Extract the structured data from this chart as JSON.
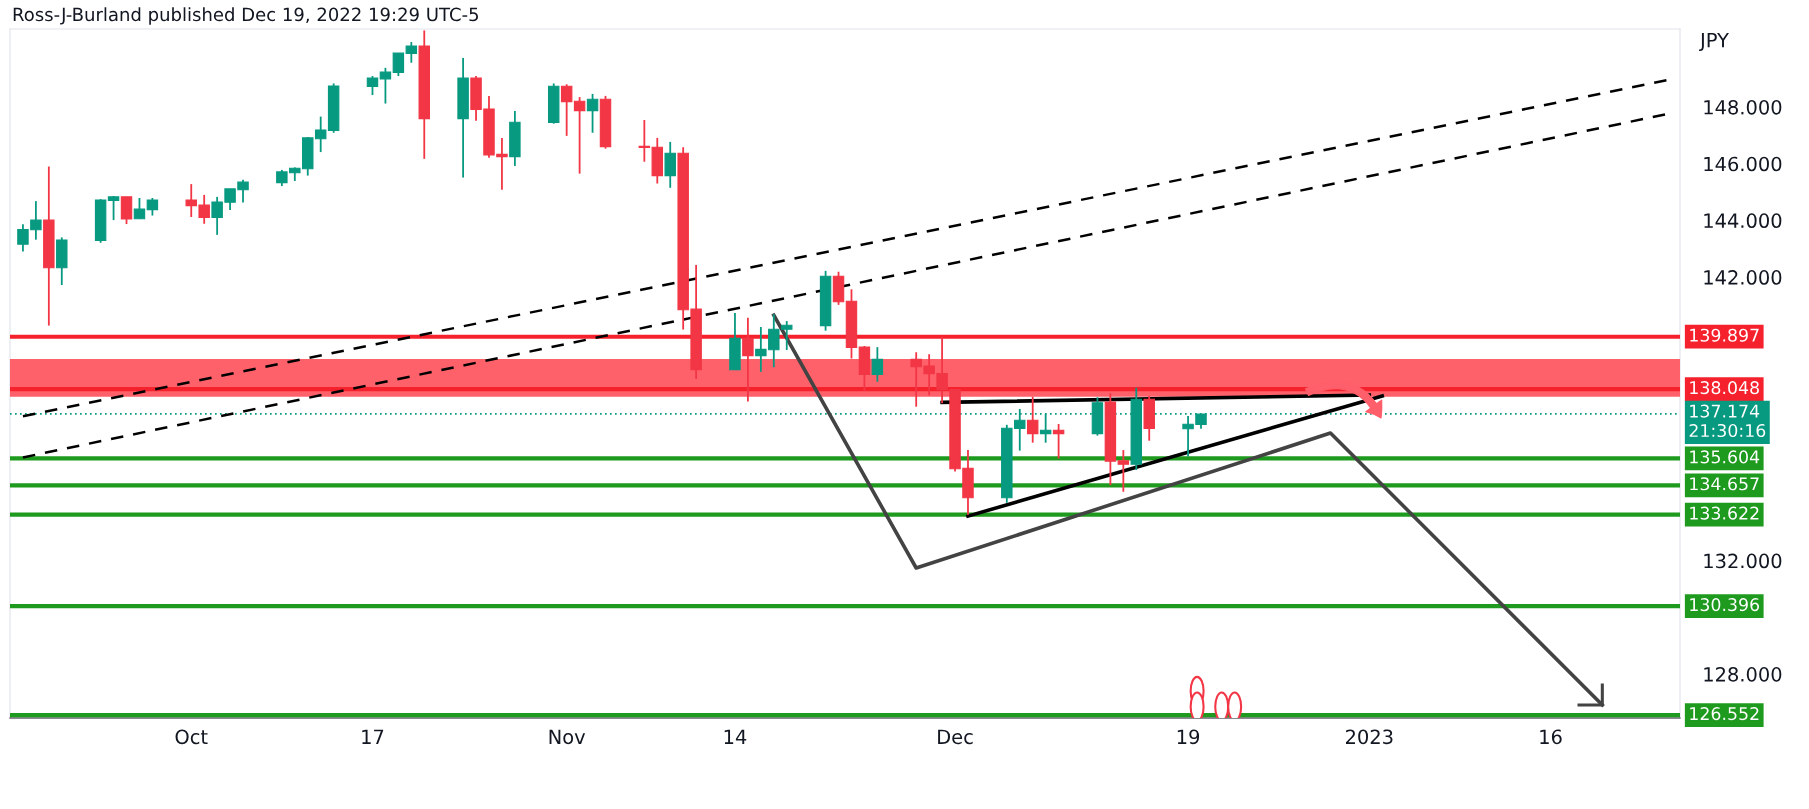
{
  "chart_data": {
    "type": "candlestick",
    "title": "Ross-J-Burland published Dec 19, 2022 19:29 UTC-5",
    "ylabel": "JPY",
    "x": [
      "2022-09-20",
      "2022-09-21",
      "2022-09-22",
      "2022-09-23",
      "2022-09-26",
      "2022-09-27",
      "2022-09-28",
      "2022-09-29",
      "2022-09-30",
      "2022-10-03",
      "2022-10-04",
      "2022-10-05",
      "2022-10-06",
      "2022-10-07",
      "2022-10-10",
      "2022-10-11",
      "2022-10-12",
      "2022-10-13",
      "2022-10-14",
      "2022-10-17",
      "2022-10-18",
      "2022-10-19",
      "2022-10-20",
      "2022-10-21",
      "2022-10-24",
      "2022-10-25",
      "2022-10-26",
      "2022-10-27",
      "2022-10-28",
      "2022-10-31",
      "2022-11-01",
      "2022-11-02",
      "2022-11-03",
      "2022-11-04",
      "2022-11-07",
      "2022-11-08",
      "2022-11-09",
      "2022-11-10",
      "2022-11-11",
      "2022-11-14",
      "2022-11-15",
      "2022-11-16",
      "2022-11-17",
      "2022-11-18",
      "2022-11-21",
      "2022-11-22",
      "2022-11-23",
      "2022-11-24",
      "2022-11-25",
      "2022-11-28",
      "2022-11-29",
      "2022-11-30",
      "2022-12-01",
      "2022-12-02",
      "2022-12-05",
      "2022-12-06",
      "2022-12-07",
      "2022-12-08",
      "2022-12-09",
      "2022-12-12",
      "2022-12-13",
      "2022-12-14",
      "2022-12-15",
      "2022-12-16",
      "2022-12-19",
      "2022-12-20"
    ],
    "ohlc": [
      [
        143.16,
        143.86,
        142.9,
        143.68
      ],
      [
        143.67,
        144.68,
        143.32,
        144.01
      ],
      [
        144.01,
        145.9,
        140.29,
        142.33
      ],
      [
        142.33,
        143.4,
        141.72,
        143.31
      ],
      [
        143.29,
        144.75,
        143.21,
        144.72
      ],
      [
        144.7,
        144.86,
        144.01,
        144.83
      ],
      [
        144.83,
        144.83,
        143.87,
        144.05
      ],
      [
        144.06,
        144.79,
        144.06,
        144.4
      ],
      [
        144.38,
        144.79,
        144.17,
        144.72
      ],
      [
        144.72,
        145.28,
        144.12,
        144.52
      ],
      [
        144.54,
        144.9,
        143.88,
        144.1
      ],
      [
        144.1,
        144.83,
        143.49,
        144.65
      ],
      [
        144.64,
        145.11,
        144.37,
        145.11
      ],
      [
        145.08,
        145.43,
        144.63,
        145.35
      ],
      [
        145.33,
        145.78,
        145.21,
        145.71
      ],
      [
        145.68,
        145.87,
        145.39,
        145.84
      ],
      [
        145.82,
        146.94,
        145.58,
        146.91
      ],
      [
        146.88,
        147.66,
        146.41,
        147.19
      ],
      [
        147.17,
        148.83,
        147.09,
        148.74
      ],
      [
        148.72,
        149.09,
        148.42,
        149.02
      ],
      [
        148.99,
        149.38,
        148.12,
        149.23
      ],
      [
        149.22,
        149.9,
        149.09,
        149.9
      ],
      [
        149.89,
        150.29,
        149.56,
        150.15
      ],
      [
        150.15,
        150.7,
        146.17,
        147.59
      ],
      [
        147.59,
        149.73,
        145.51,
        149.02
      ],
      [
        149.02,
        149.09,
        147.51,
        147.91
      ],
      [
        147.93,
        148.39,
        146.21,
        146.31
      ],
      [
        146.33,
        146.91,
        145.08,
        146.25
      ],
      [
        146.25,
        147.86,
        145.92,
        147.46
      ],
      [
        147.45,
        148.83,
        147.41,
        148.73
      ],
      [
        148.73,
        148.8,
        146.98,
        148.19
      ],
      [
        148.2,
        148.35,
        145.65,
        147.87
      ],
      [
        147.87,
        148.46,
        147.09,
        148.27
      ],
      [
        148.27,
        148.39,
        146.53,
        146.6
      ],
      [
        146.61,
        147.54,
        146.07,
        146.57
      ],
      [
        146.58,
        146.91,
        145.3,
        145.58
      ],
      [
        145.58,
        146.77,
        145.15,
        146.37
      ],
      [
        146.37,
        146.58,
        140.15,
        140.85
      ],
      [
        140.87,
        142.43,
        138.41,
        138.73
      ],
      [
        138.73,
        140.73,
        138.73,
        139.84
      ],
      [
        139.84,
        140.57,
        137.61,
        139.23
      ],
      [
        139.23,
        140.24,
        138.66,
        139.45
      ],
      [
        139.44,
        140.69,
        138.82,
        140.16
      ],
      [
        140.16,
        140.45,
        139.43,
        140.3
      ],
      [
        140.29,
        142.22,
        140.11,
        142.03
      ],
      [
        142.03,
        142.19,
        141.02,
        141.13
      ],
      [
        141.15,
        141.57,
        139.13,
        139.52
      ],
      [
        139.53,
        139.57,
        137.98,
        138.57
      ],
      [
        138.57,
        139.53,
        138.31,
        139.1
      ],
      [
        139.1,
        139.35,
        137.43,
        138.84
      ],
      [
        138.86,
        139.28,
        137.83,
        138.59
      ],
      [
        138.6,
        139.9,
        137.55,
        138.03
      ],
      [
        138.03,
        138.03,
        135.14,
        135.24
      ],
      [
        135.26,
        135.9,
        133.62,
        134.22
      ],
      [
        134.22,
        136.79,
        134.04,
        136.67
      ],
      [
        136.66,
        137.35,
        135.88,
        136.95
      ],
      [
        136.95,
        137.78,
        136.16,
        136.48
      ],
      [
        136.48,
        137.17,
        136.16,
        136.6
      ],
      [
        136.6,
        136.82,
        135.6,
        136.48
      ],
      [
        136.48,
        137.76,
        136.41,
        137.57
      ],
      [
        137.59,
        137.9,
        134.66,
        135.51
      ],
      [
        135.52,
        135.9,
        134.43,
        135.4
      ],
      [
        135.4,
        138.1,
        135.2,
        137.69
      ],
      [
        137.69,
        137.81,
        136.23,
        136.66
      ],
      [
        136.65,
        137.1,
        135.67,
        136.81
      ],
      [
        136.8,
        137.17,
        136.65,
        137.17
      ]
    ],
    "colors": [
      "#089981",
      "#089981",
      "#f23645",
      "#089981",
      "#089981",
      "#089981",
      "#f23645",
      "#089981",
      "#089981",
      "#f23645",
      "#f23645",
      "#089981",
      "#089981",
      "#089981",
      "#089981",
      "#089981",
      "#089981",
      "#089981",
      "#089981",
      "#089981",
      "#089981",
      "#089981",
      "#089981",
      "#f23645",
      "#089981",
      "#f23645",
      "#f23645",
      "#f23645",
      "#089981",
      "#089981",
      "#f23645",
      "#f23645",
      "#089981",
      "#f23645",
      "#f23645",
      "#f23645",
      "#089981",
      "#f23645",
      "#f23645",
      "#089981",
      "#f23645",
      "#089981",
      "#089981",
      "#089981",
      "#089981",
      "#f23645",
      "#f23645",
      "#f23645",
      "#089981",
      "#f23645",
      "#f23645",
      "#f23645",
      "#f23645",
      "#f23645",
      "#089981",
      "#089981",
      "#f23645",
      "#089981",
      "#f23645",
      "#089981",
      "#f23645",
      "#f23645",
      "#089981",
      "#f23645",
      "#089981",
      "#089981"
    ],
    "series": [
      {
        "type": "line",
        "x": [
          "2022-09-20",
          "2023-01-25"
        ],
        "values": [
          137.09,
          148.95
        ],
        "color": "#000000",
        "line_style": "dashed"
      },
      {
        "type": "line",
        "x": [
          "2022-09-20",
          "2023-01-25"
        ],
        "values": [
          135.64,
          147.75
        ],
        "color": "#000000",
        "line_style": "dashed"
      },
      {
        "type": "line",
        "x": [
          "2022-11-30",
          "2023-01-02"
        ],
        "values": [
          137.58,
          137.84
        ],
        "color": "#000000",
        "line_style": "solid"
      },
      {
        "type": "line",
        "x": [
          "2022-12-02",
          "2023-01-03"
        ],
        "values": [
          133.57,
          137.81
        ],
        "color": "#000000",
        "line_style": "solid"
      },
      {
        "type": "line",
        "x": [
          "2022-11-17",
          "2022-11-28",
          "2022-12-30",
          "2023-01-20"
        ],
        "values": [
          140.66,
          131.74,
          136.5,
          126.91
        ],
        "color": "#434343",
        "line_style": "solid"
      }
    ],
    "bands": [
      {
        "axis": "y",
        "from": 137.78,
        "to": 139.11,
        "color": "#ff616b"
      }
    ],
    "ref_lines": [
      {
        "axis": "y",
        "value": 139.897,
        "label": "139.897",
        "color": "#f5222d",
        "line_style": "solid"
      },
      {
        "axis": "y",
        "value": 138.048,
        "label": "138.048",
        "color": "#f5222d",
        "line_style": "solid"
      },
      {
        "axis": "y",
        "value": 137.174,
        "label": "137.174\n21:30:16",
        "color": "#089981",
        "line_style": "dotted"
      },
      {
        "axis": "y",
        "value": 135.604,
        "label": "135.604",
        "color": "#1e9a1e",
        "line_style": "solid"
      },
      {
        "axis": "y",
        "value": 134.657,
        "label": "134.657",
        "color": "#1e9a1e",
        "line_style": "solid"
      },
      {
        "axis": "y",
        "value": 133.622,
        "label": "133.622",
        "color": "#1e9a1e",
        "line_style": "solid"
      },
      {
        "axis": "y",
        "value": 130.396,
        "label": "130.396",
        "color": "#1e9a1e",
        "line_style": "solid"
      },
      {
        "axis": "y",
        "value": 126.552,
        "label": "126.552",
        "color": "#1e9a1e",
        "line_style": "solid"
      }
    ],
    "xlim": [
      "2022-09-19",
      "2023-01-26"
    ],
    "xticks": [
      {
        "value": "2022-10-03",
        "label": "Oct"
      },
      {
        "value": "2022-10-17",
        "label": "17"
      },
      {
        "value": "2022-11-01",
        "label": "Nov"
      },
      {
        "value": "2022-11-14",
        "label": "14"
      },
      {
        "value": "2022-12-01",
        "label": "Dec"
      },
      {
        "value": "2022-12-19",
        "label": "19"
      },
      {
        "value": "2023-01-02",
        "label": "2023"
      },
      {
        "value": "2023-01-16",
        "label": "16"
      }
    ],
    "ylim": [
      126.45,
      150.75
    ],
    "yticks": [
      {
        "value": 128,
        "label": "128.000"
      },
      {
        "value": 132,
        "label": "132.000"
      },
      {
        "value": 142,
        "label": "142.000"
      },
      {
        "value": 144,
        "label": "144.000"
      },
      {
        "value": 146,
        "label": "146.000"
      },
      {
        "value": 148,
        "label": "148.000"
      }
    ],
    "grid": false,
    "legend": false
  }
}
